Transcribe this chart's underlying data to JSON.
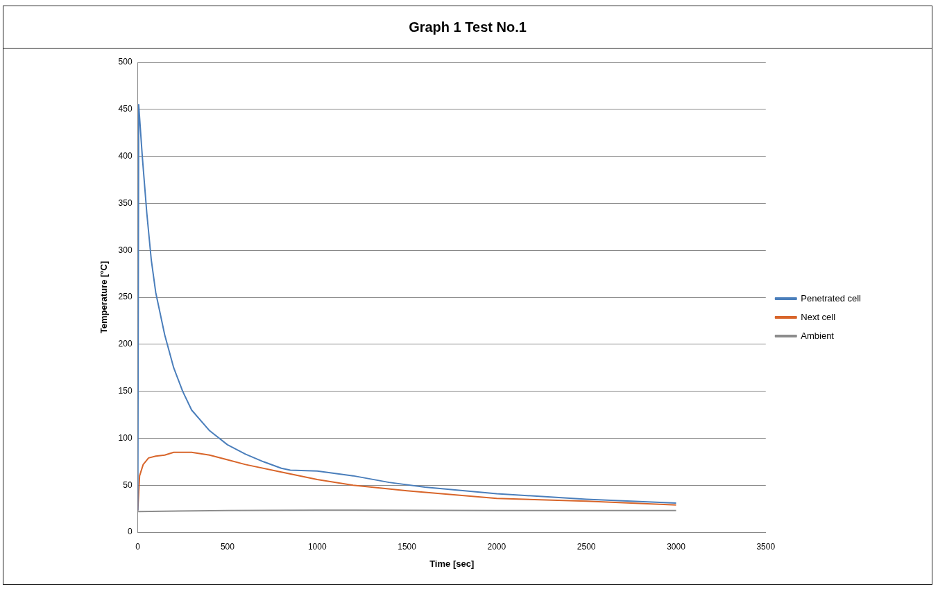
{
  "chart_data": {
    "type": "line",
    "title": "Graph 1 Test No.1",
    "xlabel": "Time [sec]",
    "ylabel": "Temperature [°C]",
    "xlim": [
      0,
      3500
    ],
    "xticks": [
      0,
      500,
      1000,
      1500,
      2000,
      2500,
      3000,
      3500
    ],
    "ylim": [
      0,
      500
    ],
    "yticks": [
      0,
      50,
      100,
      150,
      200,
      250,
      300,
      350,
      400,
      450,
      500
    ],
    "grid": "y",
    "legend": "right",
    "marker": "none",
    "line_style": "solid",
    "series": [
      {
        "name": "Penetrated cell",
        "color": "#4a7ebb",
        "x": [
          0,
          5,
          25,
          50,
          75,
          100,
          150,
          200,
          250,
          300,
          400,
          500,
          600,
          700,
          800,
          850,
          1000,
          1200,
          1400,
          1600,
          2000,
          2500,
          3000
        ],
        "values": [
          23,
          455,
          400,
          340,
          290,
          255,
          210,
          175,
          150,
          130,
          108,
          93,
          83,
          75,
          68,
          66,
          65,
          60,
          53,
          48,
          41,
          35,
          31
        ]
      },
      {
        "name": "Next cell",
        "color": "#d8652a",
        "x": [
          0,
          10,
          30,
          60,
          100,
          150,
          200,
          300,
          400,
          500,
          600,
          800,
          1000,
          1200,
          1500,
          2000,
          2500,
          3000
        ],
        "values": [
          23,
          60,
          72,
          79,
          81,
          82,
          85,
          85,
          82,
          77,
          72,
          64,
          56,
          50,
          44,
          36,
          33,
          29
        ]
      },
      {
        "name": "Ambient",
        "color": "#8c8c8c",
        "x": [
          0,
          500,
          1000,
          2000,
          3000
        ],
        "values": [
          22,
          23,
          23.5,
          23,
          23
        ]
      }
    ]
  }
}
